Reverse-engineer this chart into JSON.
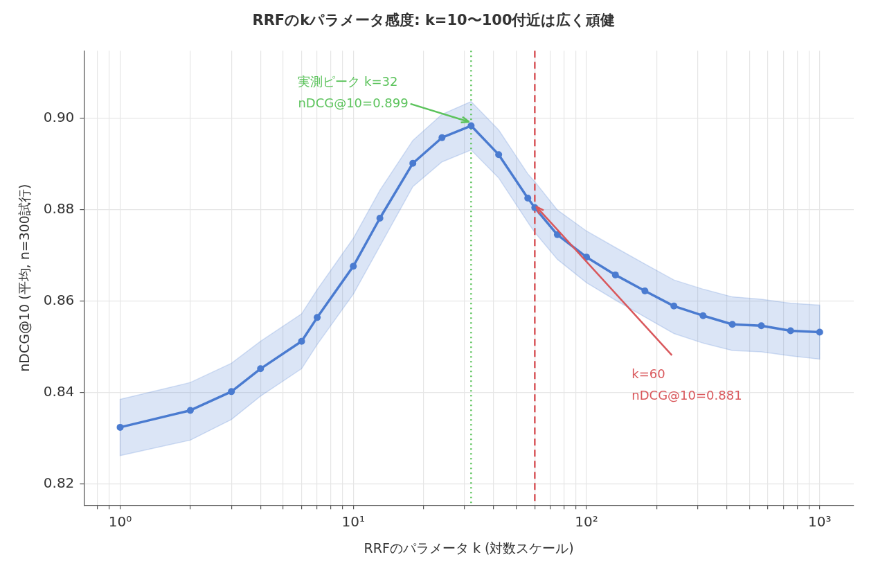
{
  "chart_data": {
    "type": "line",
    "title": "RRFのkパラメータ感度: k=10〜100付近は広く頑健",
    "xlabel": "RRFのパラメータ k (対数スケール)",
    "ylabel": "nDCG@10 (平均, n=300試行)",
    "log": "x",
    "grid": true,
    "legend": false,
    "marker": "circle",
    "line_style": "solid",
    "xlim": [
      0.71,
      1400
    ],
    "ylim": [
      0.8154,
      0.9147
    ],
    "xticks": [
      {
        "value": 0.8,
        "label": null
      },
      {
        "value": 0.9,
        "label": null
      },
      {
        "value": 1,
        "label": "10⁰"
      },
      {
        "value": 2,
        "label": null
      },
      {
        "value": 3,
        "label": null
      },
      {
        "value": 4,
        "label": null
      },
      {
        "value": 5,
        "label": null
      },
      {
        "value": 6,
        "label": null
      },
      {
        "value": 7,
        "label": null
      },
      {
        "value": 8,
        "label": null
      },
      {
        "value": 9,
        "label": null
      },
      {
        "value": 10,
        "label": "10¹"
      },
      {
        "value": 20,
        "label": null
      },
      {
        "value": 30,
        "label": null
      },
      {
        "value": 40,
        "label": null
      },
      {
        "value": 50,
        "label": null
      },
      {
        "value": 60,
        "label": null
      },
      {
        "value": 70,
        "label": null
      },
      {
        "value": 80,
        "label": null
      },
      {
        "value": 90,
        "label": null
      },
      {
        "value": 100,
        "label": "10²"
      },
      {
        "value": 200,
        "label": null
      },
      {
        "value": 300,
        "label": null
      },
      {
        "value": 400,
        "label": null
      },
      {
        "value": 500,
        "label": null
      },
      {
        "value": 600,
        "label": null
      },
      {
        "value": 700,
        "label": null
      },
      {
        "value": 800,
        "label": null
      },
      {
        "value": 900,
        "label": null
      },
      {
        "value": 1000,
        "label": "10³"
      }
    ],
    "yticks": [
      0.82,
      0.84,
      0.86,
      0.88,
      {
        "value": 0.9,
        "label": "0.90"
      }
    ],
    "x": [
      1,
      2,
      3,
      4,
      6,
      7,
      10,
      13,
      18,
      24,
      32,
      42,
      56,
      60,
      75,
      100,
      133,
      178,
      237,
      316,
      422,
      562,
      750,
      1000
    ],
    "series": [
      {
        "color": "#4a7bd0",
        "values": [
          0.8324,
          0.8361,
          0.8402,
          0.8452,
          0.8512,
          0.8564,
          0.8676,
          0.8781,
          0.8901,
          0.8957,
          0.8983,
          0.892,
          0.8825,
          0.8804,
          0.8745,
          0.8696,
          0.8657,
          0.8622,
          0.8589,
          0.8568,
          0.8549,
          0.8546,
          0.8535,
          0.8532
        ],
        "lower": [
          0.8262,
          0.8296,
          0.8341,
          0.8392,
          0.8452,
          0.8505,
          0.8615,
          0.872,
          0.885,
          0.8904,
          0.893,
          0.8869,
          0.8772,
          0.875,
          0.8691,
          0.864,
          0.8602,
          0.8565,
          0.8529,
          0.8508,
          0.8492,
          0.8489,
          0.848,
          0.8473
        ],
        "upper": [
          0.8385,
          0.8422,
          0.8464,
          0.8512,
          0.8572,
          0.8625,
          0.8737,
          0.8842,
          0.8951,
          0.9008,
          0.9036,
          0.8974,
          0.8878,
          0.8861,
          0.8799,
          0.8753,
          0.8717,
          0.8681,
          0.8646,
          0.8626,
          0.8609,
          0.8604,
          0.8595,
          0.8591
        ]
      }
    ],
    "ref_lines": [
      {
        "axis": "x",
        "value": 32,
        "color": "#5cc35c",
        "line_style": "dotted"
      },
      {
        "axis": "x",
        "value": 60,
        "color": "#d9575b",
        "line_style": "dashed"
      }
    ],
    "annotations": [
      {
        "text": "実測ピーク k=32\nnDCG@10=0.899",
        "x": 32,
        "y": 0.899
      },
      {
        "text": "k=60\nnDCG@10=0.881",
        "x": 60,
        "y": 0.881
      }
    ]
  }
}
